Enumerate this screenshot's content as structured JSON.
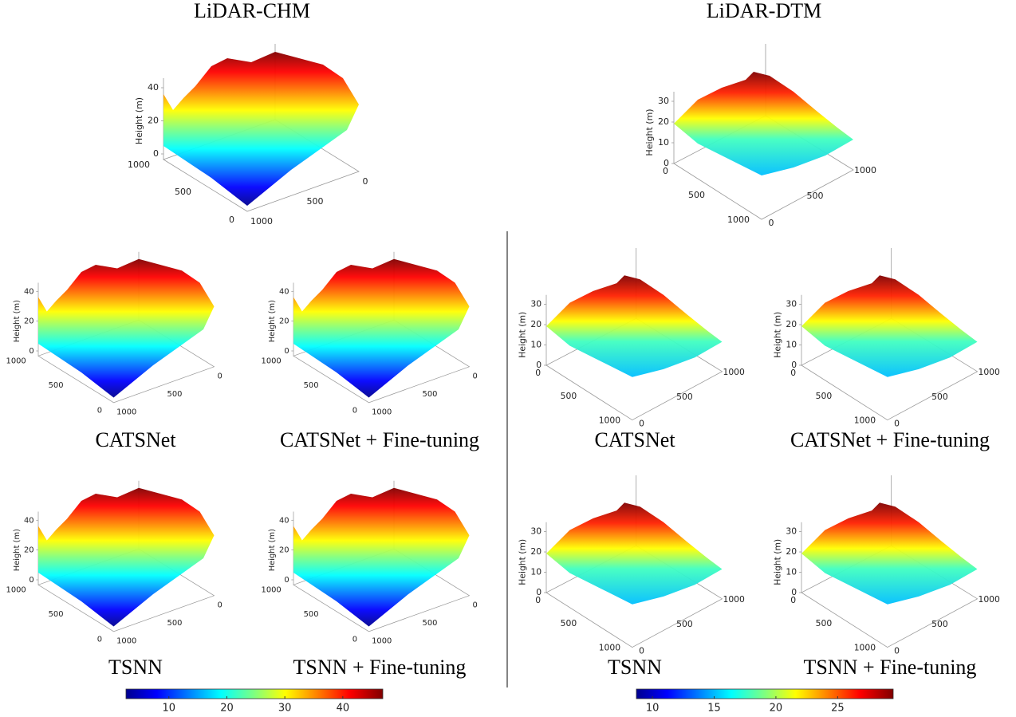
{
  "chm": {
    "z_label": "Height (m)",
    "zticks": [
      0,
      20,
      40
    ],
    "yticks": [
      1000,
      500,
      0
    ],
    "xticks": [
      1000,
      500,
      0
    ],
    "panels": [
      {
        "title": "LiDAR-CHM"
      },
      {
        "title": "CATSNet"
      },
      {
        "title": "CATSNet + Fine-tuning"
      },
      {
        "title": "TSNN"
      },
      {
        "title": "TSNN + Fine-tuning"
      }
    ],
    "colorbar": {
      "lim": [
        2.6,
        46.9
      ],
      "ticks": [
        10,
        20,
        30,
        40
      ]
    }
  },
  "dtm": {
    "z_label": "Height (m)",
    "zticks": [
      0,
      10,
      20,
      30
    ],
    "yticks": [
      0,
      500,
      1000
    ],
    "xticks": [
      0,
      500,
      1000
    ],
    "panels": [
      {
        "title": "LiDAR-DTM"
      },
      {
        "title": "CATSNet"
      },
      {
        "title": "CATSNet + Fine-tuning"
      },
      {
        "title": "TSNN"
      },
      {
        "title": "TSNN + Fine-tuning"
      }
    ],
    "colorbar": {
      "lim": [
        8.7,
        29.5
      ],
      "ticks": [
        10,
        15,
        20,
        25
      ]
    }
  }
}
